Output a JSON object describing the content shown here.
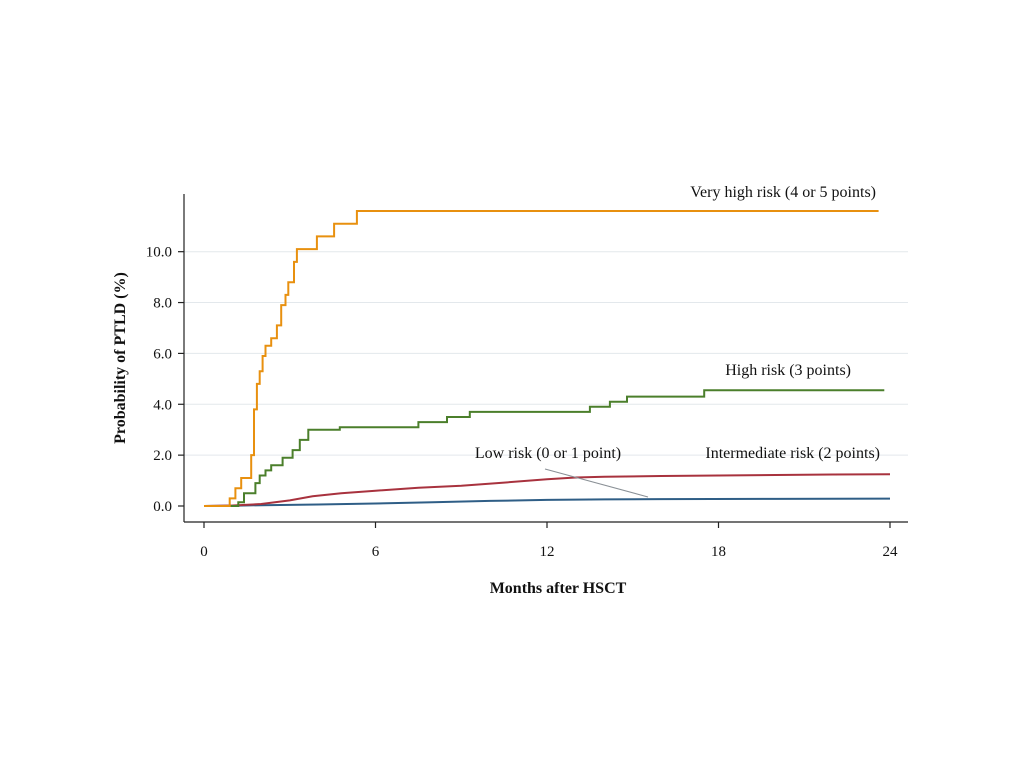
{
  "chart_data": {
    "type": "line",
    "xlabel": "Months after HSCT",
    "ylabel": "Probability of PTLD (%)",
    "xlim": [
      0,
      24
    ],
    "ylim": [
      0,
      11.6
    ],
    "xticks": [
      0,
      6,
      12,
      18,
      24
    ],
    "yticks": [
      0,
      2,
      4,
      6,
      8,
      10
    ],
    "xtick_labels": [
      "0",
      "6",
      "12",
      "18",
      "24"
    ],
    "ytick_labels": [
      "0.0",
      "2.0",
      "4.0",
      "6.0",
      "8.0",
      "10.0"
    ],
    "grid": true,
    "step": true,
    "series": [
      {
        "name": "Very high risk (4 or 5 points)",
        "color": "#e8900f",
        "points": [
          [
            0,
            0
          ],
          [
            0.9,
            0
          ],
          [
            0.9,
            0.3
          ],
          [
            1.1,
            0.3
          ],
          [
            1.1,
            0.7
          ],
          [
            1.3,
            0.7
          ],
          [
            1.3,
            1.1
          ],
          [
            1.65,
            1.1
          ],
          [
            1.65,
            2.0
          ],
          [
            1.75,
            2.0
          ],
          [
            1.75,
            3.8
          ],
          [
            1.85,
            3.8
          ],
          [
            1.85,
            4.8
          ],
          [
            1.95,
            4.8
          ],
          [
            1.95,
            5.3
          ],
          [
            2.05,
            5.3
          ],
          [
            2.05,
            5.9
          ],
          [
            2.15,
            5.9
          ],
          [
            2.15,
            6.3
          ],
          [
            2.35,
            6.3
          ],
          [
            2.35,
            6.6
          ],
          [
            2.55,
            6.6
          ],
          [
            2.55,
            7.1
          ],
          [
            2.7,
            7.1
          ],
          [
            2.7,
            7.9
          ],
          [
            2.85,
            7.9
          ],
          [
            2.85,
            8.3
          ],
          [
            2.95,
            8.3
          ],
          [
            2.95,
            8.8
          ],
          [
            3.15,
            8.8
          ],
          [
            3.15,
            9.6
          ],
          [
            3.25,
            9.6
          ],
          [
            3.25,
            10.1
          ],
          [
            3.95,
            10.1
          ],
          [
            3.95,
            10.6
          ],
          [
            4.55,
            10.6
          ],
          [
            4.55,
            11.1
          ],
          [
            5.35,
            11.1
          ],
          [
            5.35,
            11.6
          ],
          [
            23.6,
            11.6
          ]
        ]
      },
      {
        "name": "High risk (3 points)",
        "color": "#4b7f2b",
        "points": [
          [
            0,
            0
          ],
          [
            1.2,
            0
          ],
          [
            1.2,
            0.15
          ],
          [
            1.4,
            0.15
          ],
          [
            1.4,
            0.5
          ],
          [
            1.8,
            0.5
          ],
          [
            1.8,
            0.9
          ],
          [
            1.95,
            0.9
          ],
          [
            1.95,
            1.2
          ],
          [
            2.15,
            1.2
          ],
          [
            2.15,
            1.4
          ],
          [
            2.35,
            1.4
          ],
          [
            2.35,
            1.6
          ],
          [
            2.75,
            1.6
          ],
          [
            2.75,
            1.9
          ],
          [
            3.1,
            1.9
          ],
          [
            3.1,
            2.2
          ],
          [
            3.35,
            2.2
          ],
          [
            3.35,
            2.6
          ],
          [
            3.65,
            2.6
          ],
          [
            3.65,
            3.0
          ],
          [
            4.75,
            3.0
          ],
          [
            4.75,
            3.1
          ],
          [
            7.5,
            3.1
          ],
          [
            7.5,
            3.3
          ],
          [
            8.5,
            3.3
          ],
          [
            8.5,
            3.5
          ],
          [
            9.3,
            3.5
          ],
          [
            9.3,
            3.7
          ],
          [
            13.5,
            3.7
          ],
          [
            13.5,
            3.9
          ],
          [
            14.2,
            3.9
          ],
          [
            14.2,
            4.1
          ],
          [
            14.8,
            4.1
          ],
          [
            14.8,
            4.3
          ],
          [
            17.5,
            4.3
          ],
          [
            17.5,
            4.55
          ],
          [
            23.8,
            4.55
          ]
        ]
      },
      {
        "name": "Intermediate risk (2 points)",
        "color": "#a8323e",
        "points": [
          [
            0,
            0
          ],
          [
            1,
            0.02
          ],
          [
            2,
            0.08
          ],
          [
            3,
            0.22
          ],
          [
            3.8,
            0.38
          ],
          [
            4.8,
            0.5
          ],
          [
            6,
            0.6
          ],
          [
            7.5,
            0.72
          ],
          [
            9,
            0.8
          ],
          [
            10.5,
            0.92
          ],
          [
            12,
            1.05
          ],
          [
            13,
            1.12
          ],
          [
            14,
            1.15
          ],
          [
            16,
            1.18
          ],
          [
            18,
            1.2
          ],
          [
            20,
            1.22
          ],
          [
            22,
            1.24
          ],
          [
            24,
            1.25
          ]
        ]
      },
      {
        "name": "Low risk (0 or 1 point)",
        "color": "#2f5e86",
        "points": [
          [
            0,
            0
          ],
          [
            1,
            0.01
          ],
          [
            2,
            0.03
          ],
          [
            4,
            0.06
          ],
          [
            6,
            0.1
          ],
          [
            8,
            0.15
          ],
          [
            10,
            0.2
          ],
          [
            12,
            0.24
          ],
          [
            14,
            0.26
          ],
          [
            16,
            0.27
          ],
          [
            20,
            0.28
          ],
          [
            24,
            0.29
          ]
        ]
      }
    ]
  }
}
